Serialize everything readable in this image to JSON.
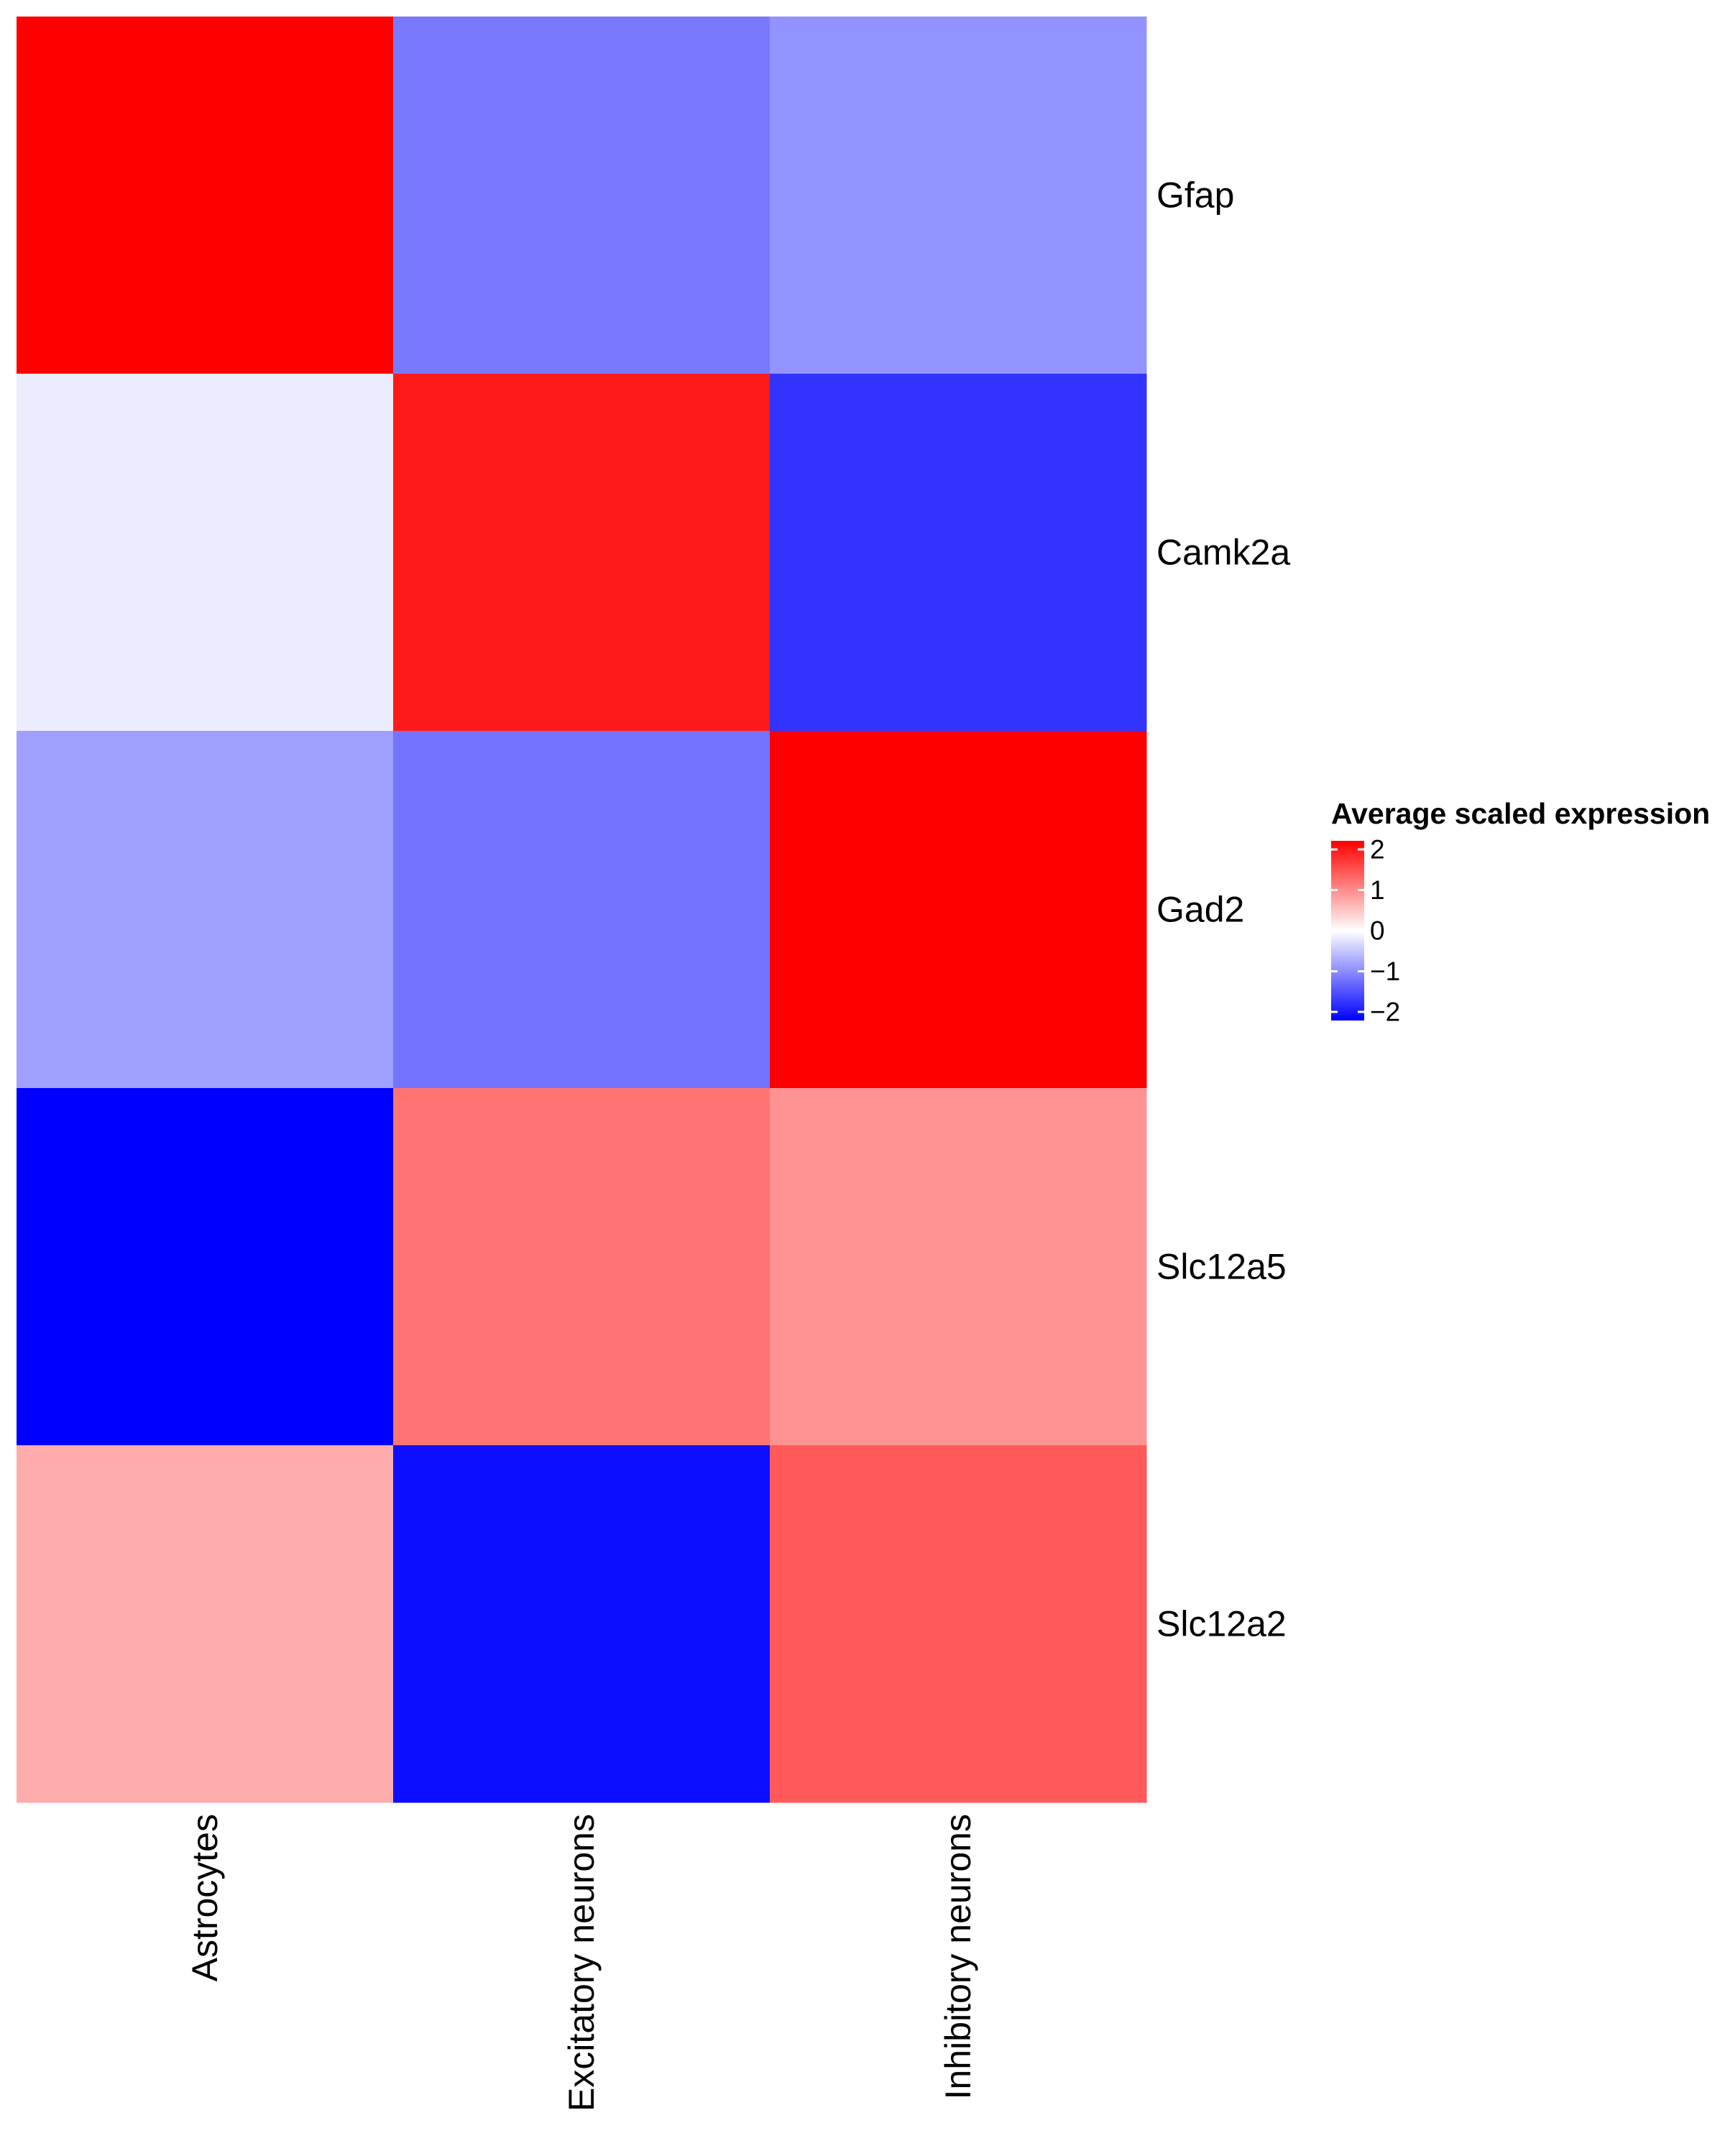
{
  "chart_data": {
    "type": "heatmap",
    "title": "",
    "xlabel": "",
    "ylabel": "",
    "rows": [
      "Gfap",
      "Camk2a",
      "Gad2",
      "Slc12a5",
      "Slc12a2"
    ],
    "columns": [
      "Astrocytes",
      "Excitatory neurons",
      "Inhibitory neurons"
    ],
    "values": [
      [
        2.0,
        -1.05,
        -0.85
      ],
      [
        -0.15,
        1.8,
        -1.6
      ],
      [
        -0.75,
        -1.1,
        2.0
      ],
      [
        -2.0,
        1.1,
        0.85
      ],
      [
        0.65,
        -1.9,
        1.3
      ]
    ],
    "legend": {
      "title": "Average scaled expression",
      "position": "right",
      "ticks": [
        2,
        1,
        0,
        -1,
        -2
      ],
      "tick_labels": [
        "2",
        "1",
        "0",
        "−1",
        "−2"
      ],
      "range": [
        -2,
        2
      ]
    },
    "colors": {
      "low": "#0000ff",
      "mid": "#ffffff",
      "high": "#ff0000"
    },
    "grid": false
  }
}
